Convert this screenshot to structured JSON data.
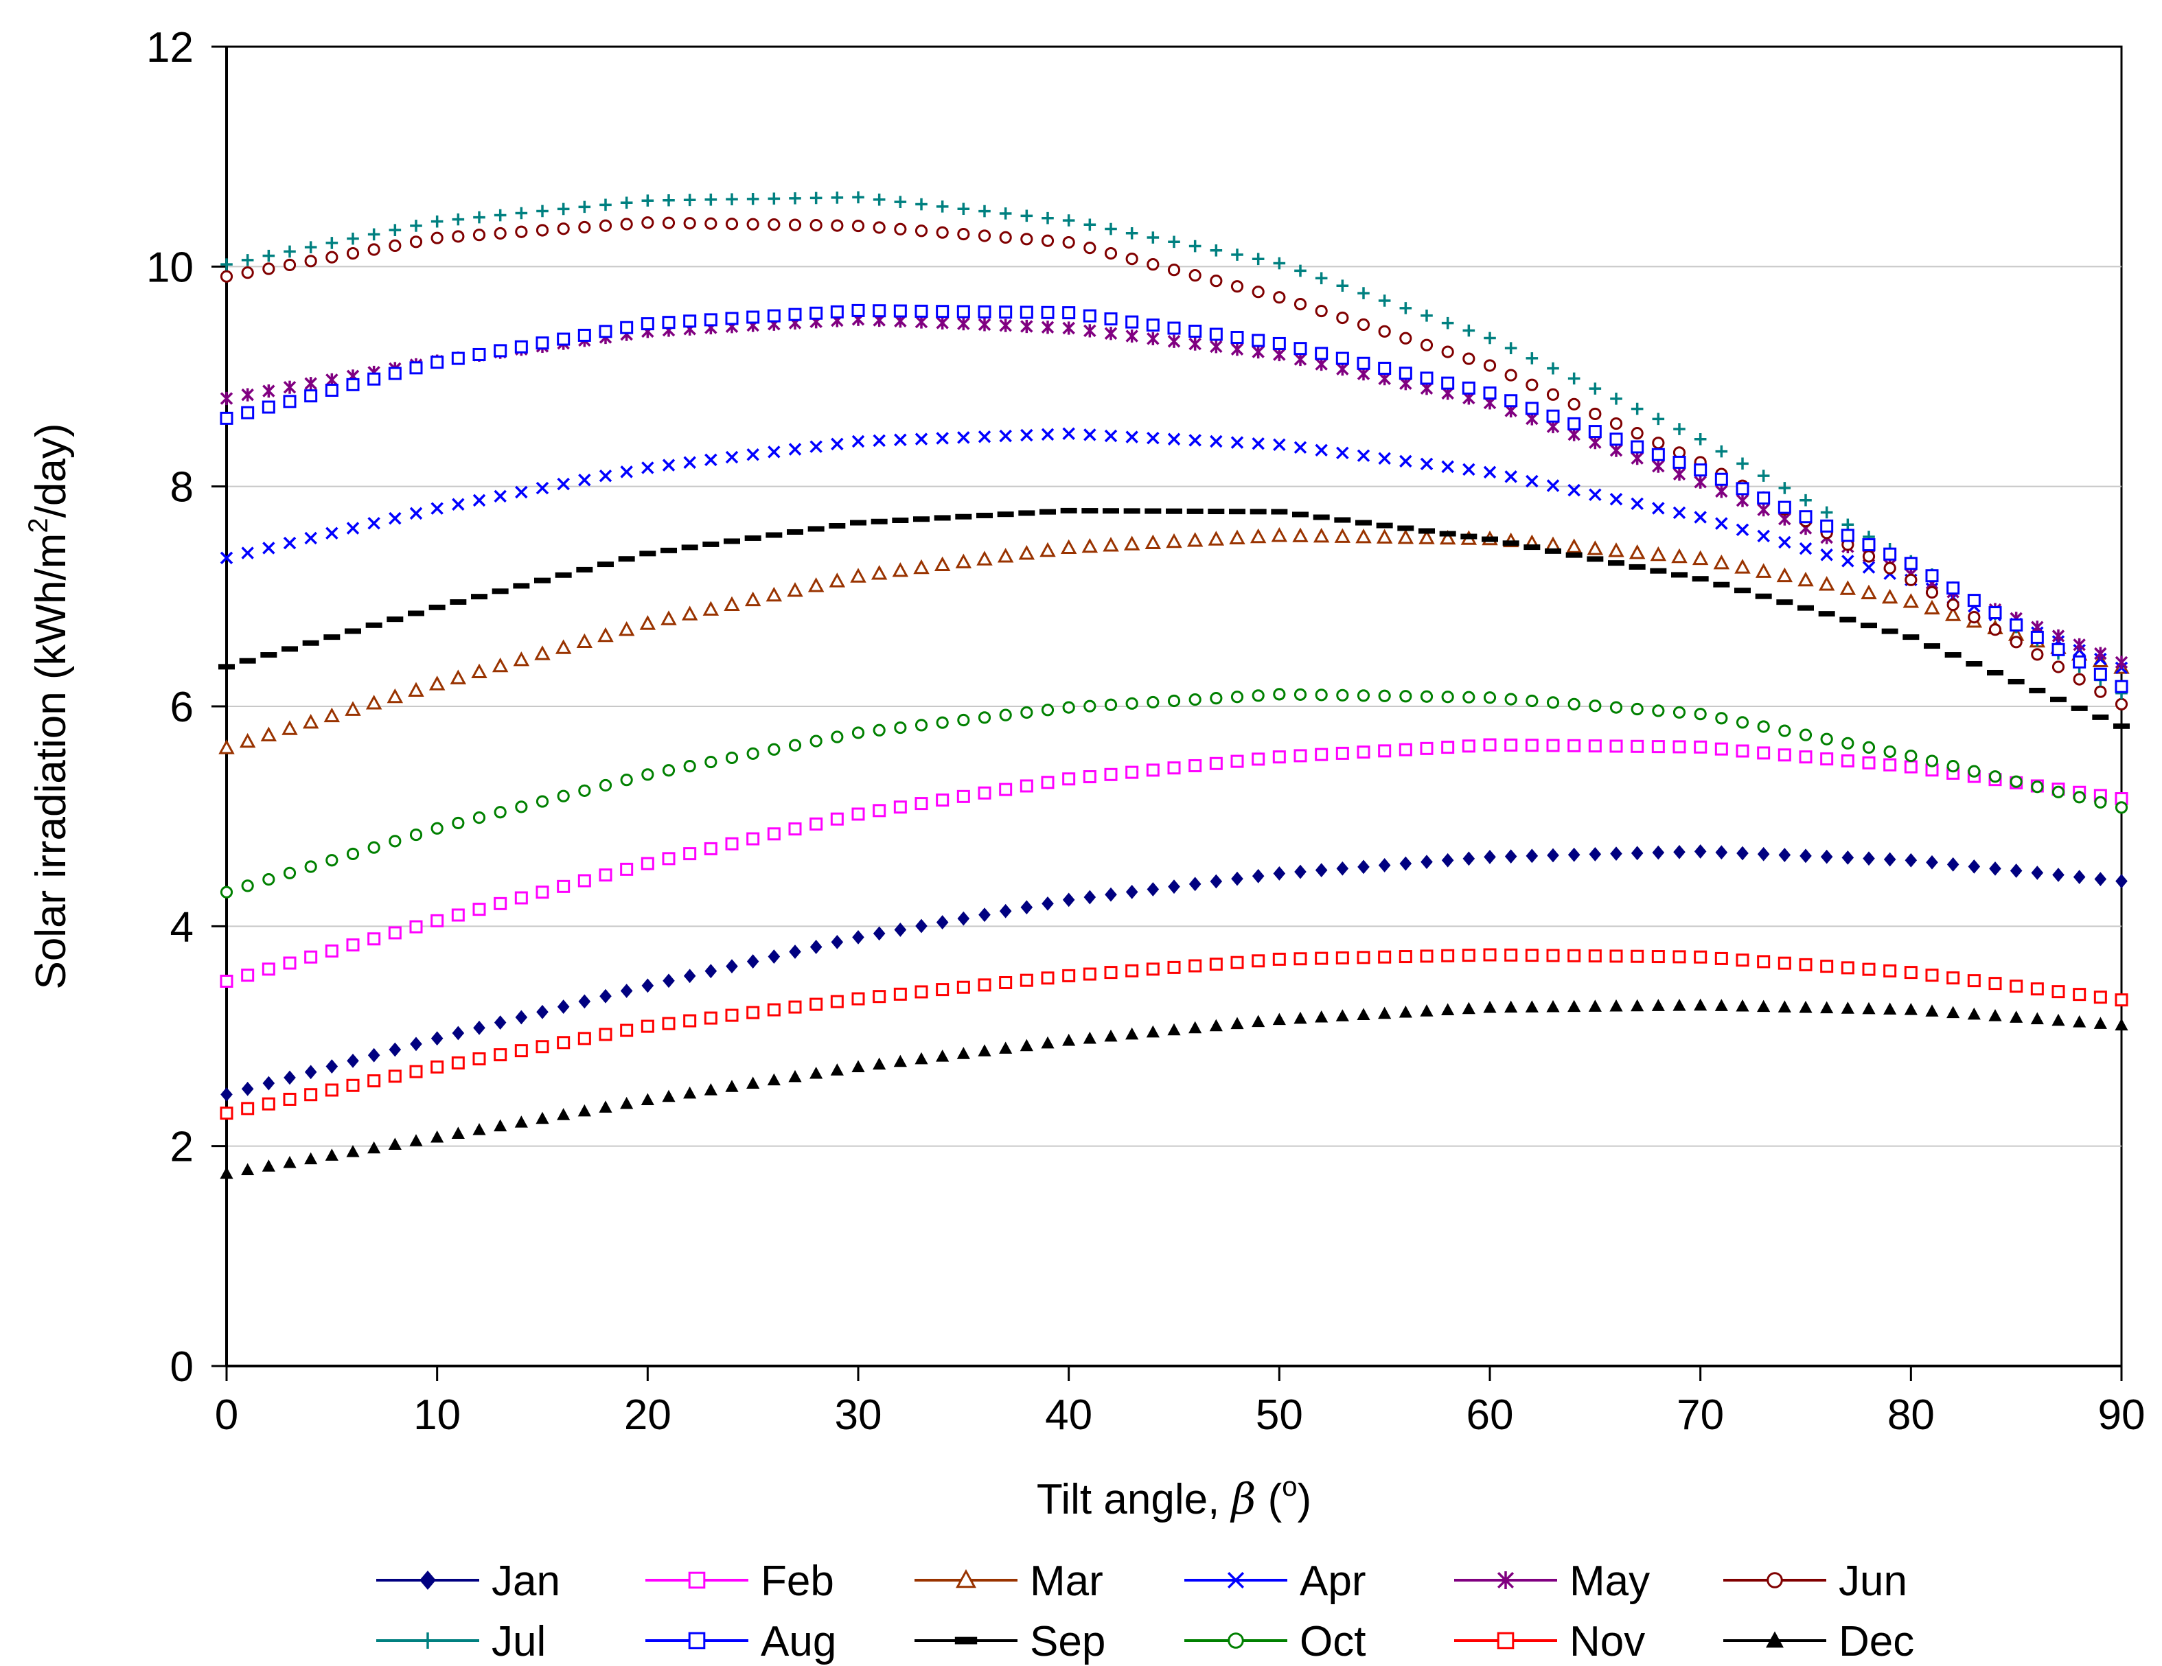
{
  "chart_data": {
    "type": "scatter",
    "title": "",
    "xlabel": "Tilt angle, ",
    "xlabel_symbol": "β",
    "xlabel_unit_open": " (",
    "xlabel_unit_sup": "o",
    "xlabel_unit_close": ")",
    "ylabel_prefix": "Solar irradiation (kWh/m",
    "ylabel_sup": "2",
    "ylabel_suffix": "/day)",
    "xlim": [
      0,
      90
    ],
    "ylim": [
      0,
      12
    ],
    "xticks": [
      0,
      10,
      20,
      30,
      40,
      50,
      60,
      70,
      80,
      90
    ],
    "yticks": [
      0,
      2,
      4,
      6,
      8,
      10,
      12
    ],
    "grid": "horizontal",
    "legend_position": "bottom",
    "x": [
      0,
      10,
      20,
      30,
      40,
      50,
      60,
      70,
      80,
      90
    ],
    "series": [
      {
        "name": "Jan",
        "color": "#000080",
        "marker": "diamond-filled",
        "values": [
          2.47,
          2.98,
          3.46,
          3.9,
          4.24,
          4.48,
          4.63,
          4.68,
          4.6,
          4.41
        ]
      },
      {
        "name": "Feb",
        "color": "#FF00FF",
        "marker": "square-open",
        "values": [
          3.5,
          4.05,
          4.57,
          5.02,
          5.34,
          5.54,
          5.65,
          5.63,
          5.45,
          5.16
        ]
      },
      {
        "name": "Mar",
        "color": "#993300",
        "marker": "triangle-open",
        "values": [
          5.62,
          6.2,
          6.75,
          7.18,
          7.44,
          7.55,
          7.52,
          7.34,
          6.95,
          6.35
        ]
      },
      {
        "name": "Apr",
        "color": "#0000FF",
        "marker": "x",
        "values": [
          7.35,
          7.8,
          8.17,
          8.41,
          8.48,
          8.38,
          8.13,
          7.72,
          7.15,
          6.35
        ]
      },
      {
        "name": "May",
        "color": "#800080",
        "marker": "star",
        "values": [
          8.8,
          9.14,
          9.41,
          9.52,
          9.44,
          9.2,
          8.76,
          8.04,
          7.2,
          6.4
        ]
      },
      {
        "name": "Jun",
        "color": "#800000",
        "marker": "circle-open",
        "values": [
          9.91,
          10.26,
          10.4,
          10.37,
          10.22,
          9.72,
          9.1,
          8.22,
          7.15,
          6.02
        ]
      },
      {
        "name": "Jul",
        "color": "#008080",
        "marker": "plus",
        "values": [
          10.02,
          10.41,
          10.6,
          10.63,
          10.42,
          10.03,
          9.35,
          8.43,
          7.32,
          6.12
        ]
      },
      {
        "name": "Aug",
        "color": "#0000FF",
        "marker": "square-open",
        "values": [
          8.62,
          9.13,
          9.48,
          9.6,
          9.58,
          9.3,
          8.85,
          8.15,
          7.3,
          6.18
        ]
      },
      {
        "name": "Sep",
        "color": "#000000",
        "marker": "dash",
        "values": [
          6.36,
          6.9,
          7.39,
          7.67,
          7.78,
          7.77,
          7.52,
          7.16,
          6.63,
          5.82
        ]
      },
      {
        "name": "Oct",
        "color": "#008000",
        "marker": "circle-open",
        "values": [
          4.31,
          4.89,
          5.38,
          5.76,
          5.99,
          6.11,
          6.08,
          5.93,
          5.55,
          5.08
        ]
      },
      {
        "name": "Nov",
        "color": "#FF0000",
        "marker": "square-open",
        "values": [
          2.3,
          2.72,
          3.09,
          3.34,
          3.55,
          3.7,
          3.74,
          3.72,
          3.58,
          3.33
        ]
      },
      {
        "name": "Dec",
        "color": "#000000",
        "marker": "triangle-filled",
        "values": [
          1.75,
          2.08,
          2.42,
          2.72,
          2.96,
          3.15,
          3.26,
          3.28,
          3.24,
          3.1
        ]
      }
    ]
  }
}
